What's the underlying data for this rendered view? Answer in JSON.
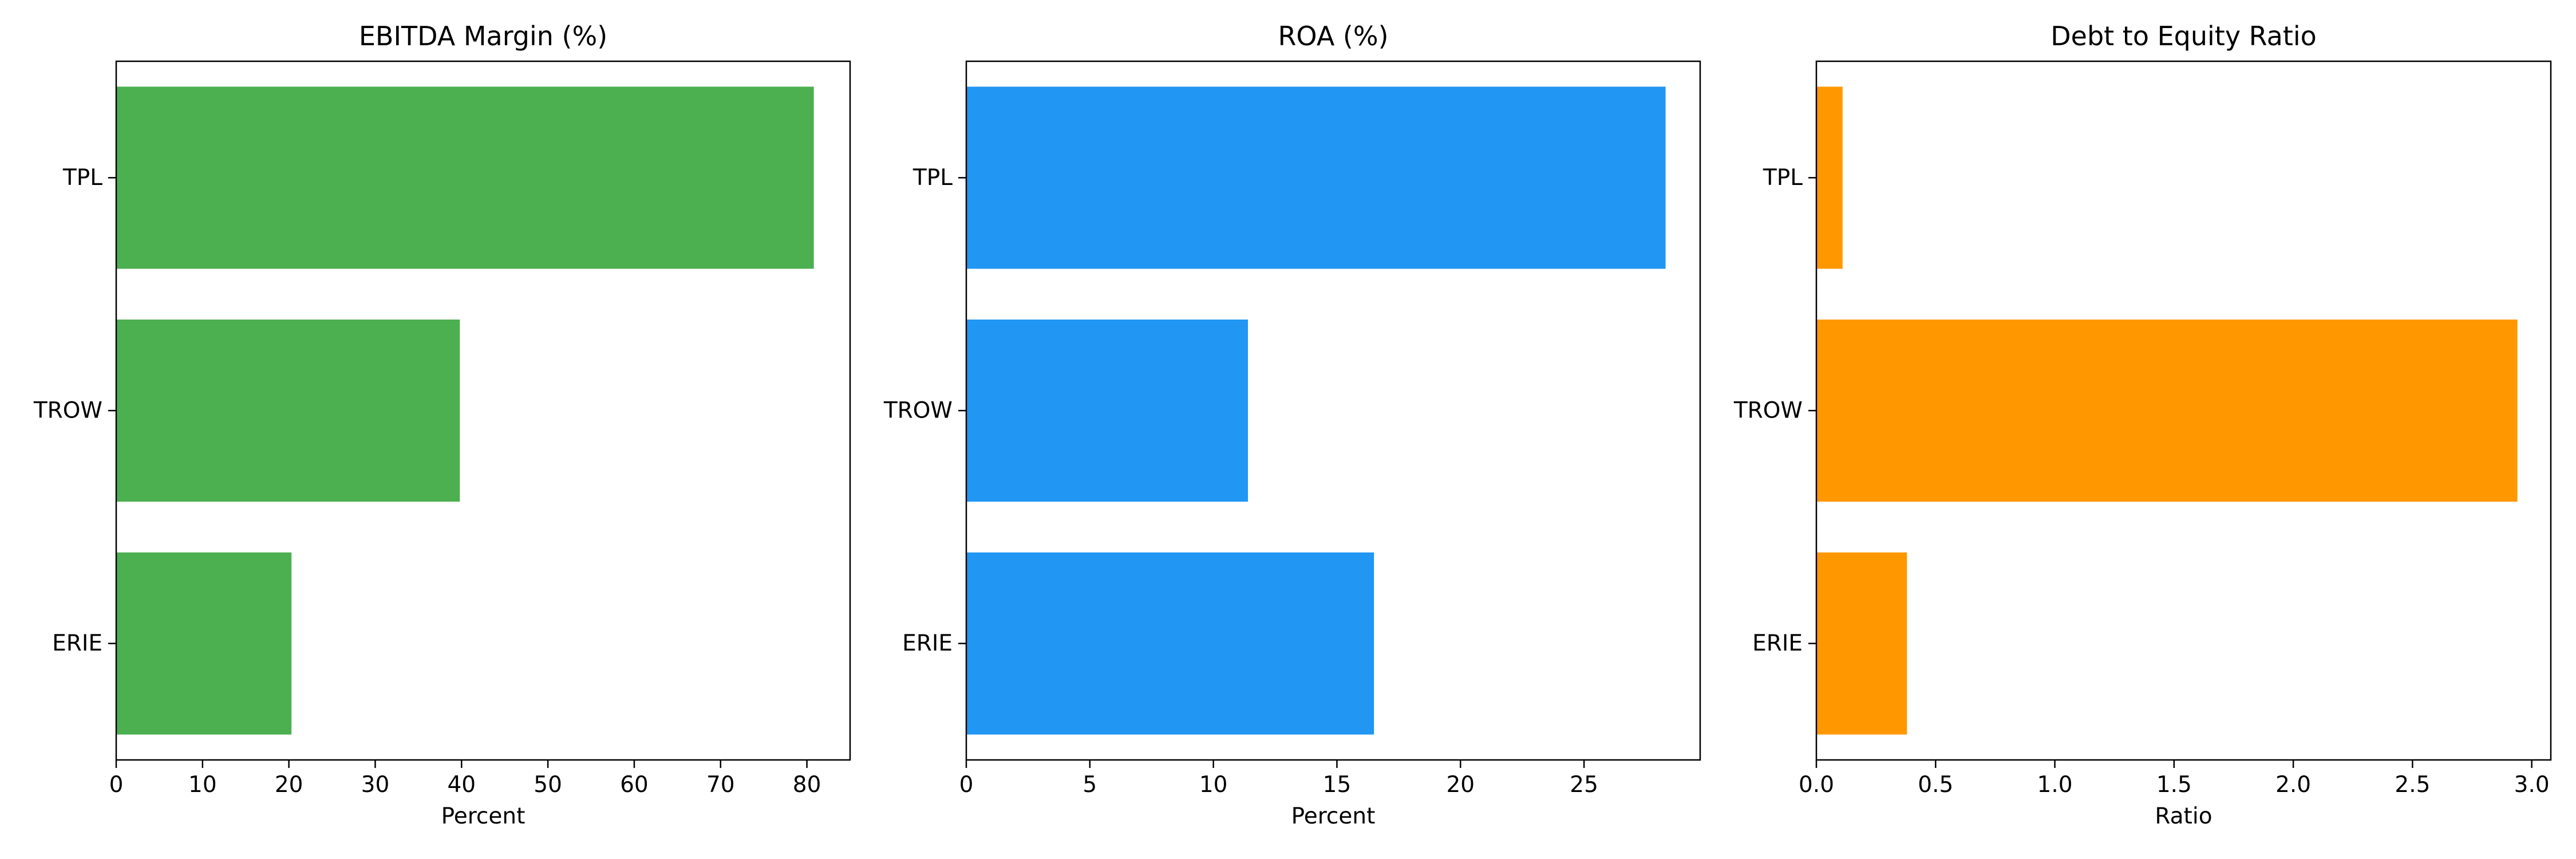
{
  "chart_data": [
    {
      "type": "bar",
      "orientation": "horizontal",
      "title": "EBITDA Margin (%)",
      "xlabel": "Percent",
      "ylabel": "",
      "categories": [
        "TPL",
        "TROW",
        "ERIE"
      ],
      "values": [
        80.8,
        39.8,
        20.3
      ],
      "xlim": [
        0,
        85
      ],
      "xticks": [
        0,
        10,
        20,
        30,
        40,
        50,
        60,
        70,
        80
      ],
      "xtick_labels": [
        "0",
        "10",
        "20",
        "30",
        "40",
        "50",
        "60",
        "70",
        "80"
      ],
      "color": "#4CAF50",
      "grid": false
    },
    {
      "type": "bar",
      "orientation": "horizontal",
      "title": "ROA (%)",
      "xlabel": "Percent",
      "ylabel": "",
      "categories": [
        "TPL",
        "TROW",
        "ERIE"
      ],
      "values": [
        28.3,
        11.4,
        16.5
      ],
      "xlim": [
        0,
        29.7
      ],
      "xticks": [
        0,
        5,
        10,
        15,
        20,
        25
      ],
      "xtick_labels": [
        "0",
        "5",
        "10",
        "15",
        "20",
        "25"
      ],
      "color": "#2196F3",
      "grid": false
    },
    {
      "type": "bar",
      "orientation": "horizontal",
      "title": "Debt to Equity Ratio",
      "xlabel": "Ratio",
      "ylabel": "",
      "categories": [
        "TPL",
        "TROW",
        "ERIE"
      ],
      "values": [
        0.11,
        2.94,
        0.38
      ],
      "xlim": [
        0,
        3.08
      ],
      "xticks": [
        0,
        0.5,
        1.0,
        1.5,
        2.0,
        2.5,
        3.0
      ],
      "xtick_labels": [
        "0.0",
        "0.5",
        "1.0",
        "1.5",
        "2.0",
        "2.5",
        "3.0"
      ],
      "color": "#FF9800",
      "grid": false
    }
  ]
}
